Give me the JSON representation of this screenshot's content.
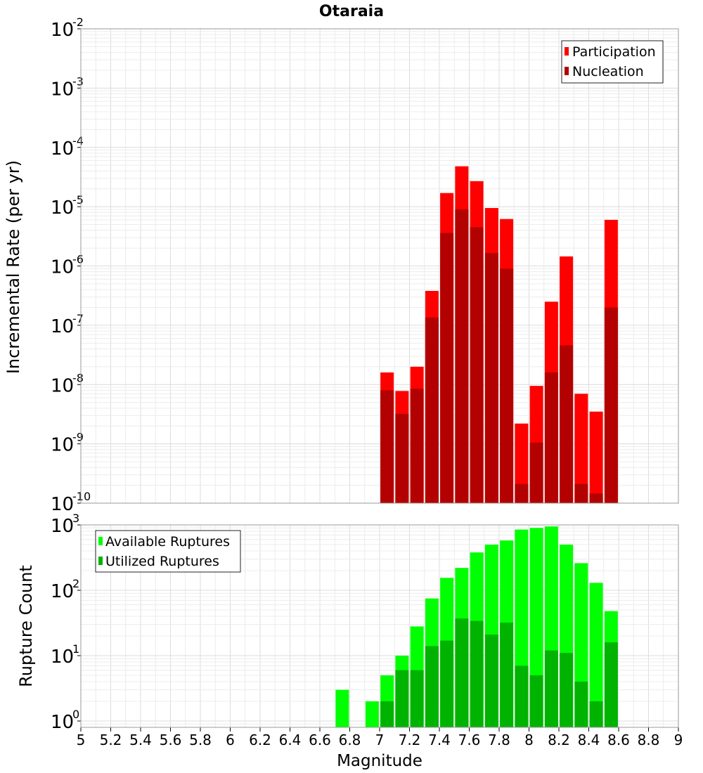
{
  "chart_data": [
    {
      "type": "bar",
      "title": "Otaraia",
      "ylabel": "Incremental Rate (per yr)",
      "xlabel": "",
      "yscale": "log",
      "ylim": [
        1e-10,
        0.01
      ],
      "xlim": [
        5,
        9
      ],
      "ytick_exponents": [
        "-10",
        "-9",
        "-8",
        "-7",
        "-6",
        "-5",
        "-4",
        "-3",
        "-2"
      ],
      "ytick_base": "10",
      "legend": {
        "placement": "top-right",
        "entries": [
          "Participation",
          "Nucleation"
        ]
      },
      "x": [
        7.05,
        7.15,
        7.25,
        7.35,
        7.45,
        7.55,
        7.65,
        7.75,
        7.85,
        7.95,
        8.05,
        8.15,
        8.25,
        8.35,
        8.45,
        8.55
      ],
      "series": [
        {
          "name": "Participation",
          "color": "#ff0000",
          "values": [
            1.6e-08,
            7.8e-09,
            2e-08,
            3.8e-07,
            1.7e-05,
            4.8e-05,
            2.7e-05,
            9.5e-06,
            6.2e-06,
            2.2e-09,
            9.5e-09,
            2.5e-07,
            1.45e-06,
            7e-09,
            3.5e-09,
            6e-06
          ]
        },
        {
          "name": "Nucleation",
          "color": "#b30000",
          "values": [
            8e-09,
            3.2e-09,
            8.5e-09,
            1.35e-07,
            3.6e-06,
            9e-06,
            4.5e-06,
            1.65e-06,
            9e-07,
            2.1e-10,
            1.05e-09,
            1.6e-08,
            4.6e-08,
            2.1e-10,
            1.45e-10,
            2e-07
          ]
        }
      ]
    },
    {
      "type": "bar",
      "title": "",
      "ylabel": "Rupture Count",
      "xlabel": "Magnitude",
      "yscale": "log",
      "ylim": [
        0.8,
        1000
      ],
      "xlim": [
        5,
        9
      ],
      "ytick_exponents": [
        "0",
        "1",
        "2",
        "3"
      ],
      "ytick_base": "10",
      "xtick_labels": [
        "5",
        "5.2",
        "5.4",
        "5.6",
        "5.8",
        "6",
        "6.2",
        "6.4",
        "6.6",
        "6.8",
        "7",
        "7.2",
        "7.4",
        "7.6",
        "7.8",
        "8",
        "8.2",
        "8.4",
        "8.6",
        "8.8",
        "9"
      ],
      "legend": {
        "placement": "top-left",
        "entries": [
          "Available Ruptures",
          "Utilized Ruptures"
        ]
      },
      "x": [
        6.75,
        6.95,
        7.05,
        7.15,
        7.25,
        7.35,
        7.45,
        7.55,
        7.65,
        7.75,
        7.85,
        7.95,
        8.05,
        8.15,
        8.25,
        8.35,
        8.45,
        8.55
      ],
      "series": [
        {
          "name": "Available Ruptures",
          "color": "#00ff00",
          "values": [
            3,
            2,
            5,
            10,
            28,
            75,
            155,
            220,
            380,
            500,
            580,
            850,
            900,
            950,
            500,
            260,
            130,
            48
          ]
        },
        {
          "name": "Utilized Ruptures",
          "color": "#00b300",
          "values": [
            0,
            0,
            2,
            6,
            6,
            14,
            17,
            37,
            34,
            21,
            32,
            7,
            5,
            12,
            11,
            4,
            2,
            16
          ]
        }
      ]
    }
  ]
}
